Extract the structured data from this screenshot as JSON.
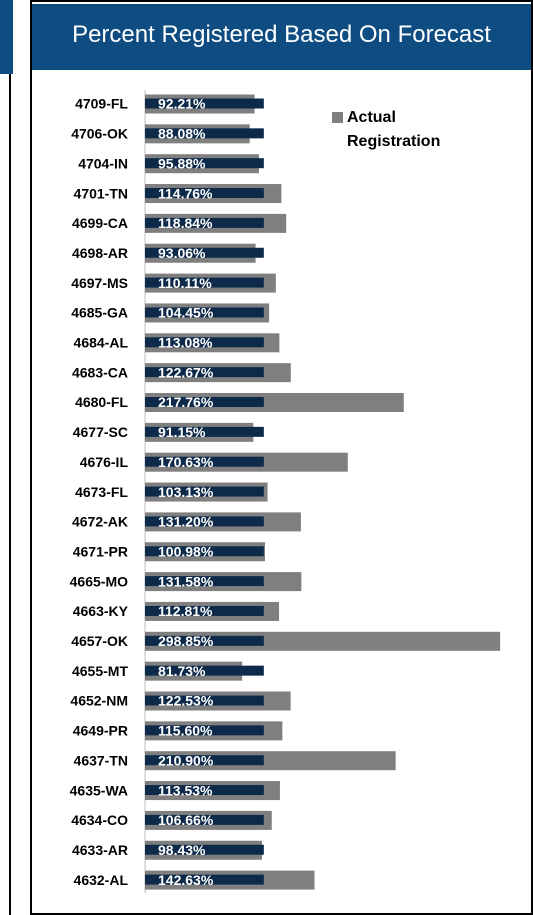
{
  "chart_data": {
    "type": "bar",
    "orientation": "horizontal",
    "title": "Percent Registered Based On Forecast",
    "categories": [
      "4709-FL",
      "4706-OK",
      "4704-IN",
      "4701-TN",
      "4699-CA",
      "4698-AR",
      "4697-MS",
      "4685-GA",
      "4684-AL",
      "4683-CA",
      "4680-FL",
      "4677-SC",
      "4676-IL",
      "4673-FL",
      "4672-AK",
      "4671-PR",
      "4665-MO",
      "4663-KY",
      "4657-OK",
      "4655-MT",
      "4652-NM",
      "4649-PR",
      "4637-TN",
      "4635-WA",
      "4634-CO",
      "4633-AR",
      "4632-AL"
    ],
    "series": [
      {
        "name": "Actual Registration",
        "color": "#7f7f7f",
        "values": [
          92.21,
          88.08,
          95.88,
          114.76,
          118.84,
          93.06,
          110.11,
          104.45,
          113.08,
          122.67,
          217.76,
          91.15,
          170.63,
          103.13,
          131.2,
          100.98,
          131.58,
          112.81,
          298.85,
          81.73,
          122.53,
          115.6,
          210.9,
          113.53,
          106.66,
          98.43,
          142.63
        ],
        "value_labels": [
          "92.21%",
          "88.08%",
          "95.88%",
          "114.76%",
          "118.84%",
          "93.06%",
          "110.11%",
          "104.45%",
          "113.08%",
          "122.67%",
          "217.76%",
          "91.15%",
          "170.63%",
          "103.13%",
          "131.20%",
          "100.98%",
          "131.58%",
          "112.81%",
          "298.85%",
          "81.73%",
          "122.53%",
          "115.60%",
          "210.90%",
          "113.53%",
          "106.66%",
          "98.43%",
          "142.63%"
        ]
      },
      {
        "color": "#0d2a4a",
        "values": [
          100,
          100,
          100,
          100,
          100,
          100,
          100,
          100,
          100,
          100,
          100,
          100,
          100,
          100,
          100,
          100,
          100,
          100,
          100,
          100,
          100,
          100,
          100,
          100,
          100,
          100,
          100
        ]
      }
    ],
    "xlim": [
      0,
      300
    ],
    "legend": "top-right",
    "header_color": "#0f4c81"
  }
}
